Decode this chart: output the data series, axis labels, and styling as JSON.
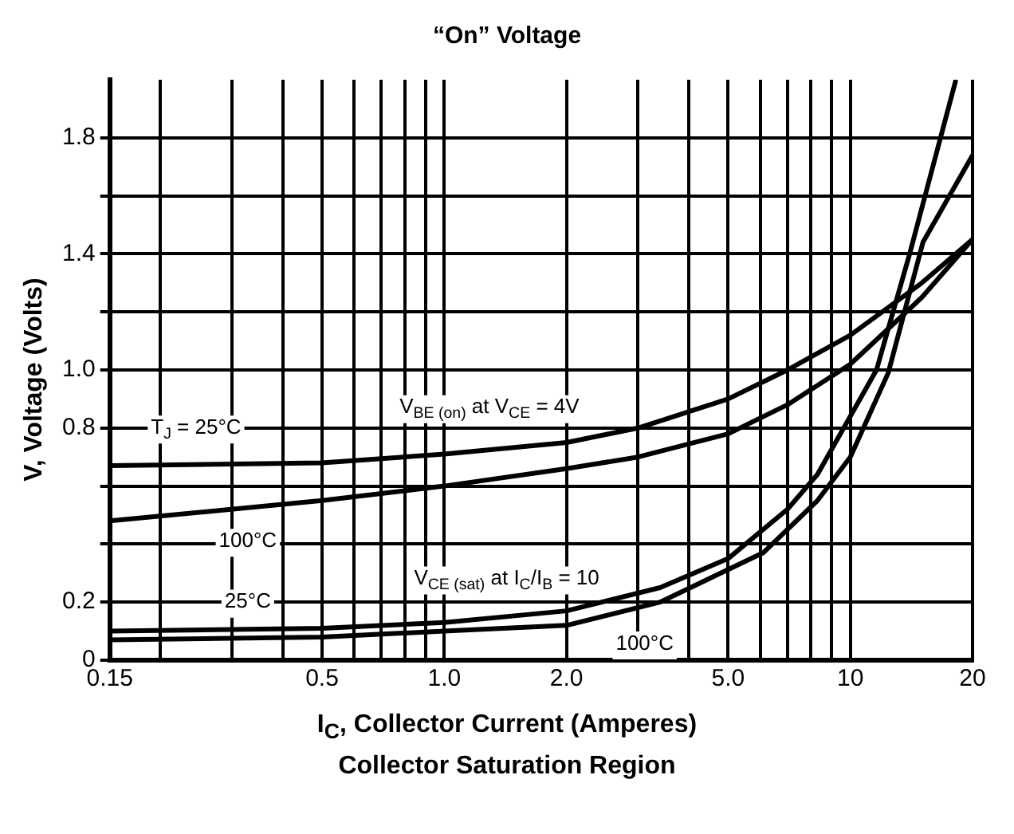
{
  "chart_data": {
    "type": "line",
    "title": "“On” Voltage",
    "xlabel": "I$_{C}$, Collector Current (Amperes)",
    "ylabel": "V, Voltage (Volts)",
    "log": "x",
    "grid": true,
    "legend": false,
    "marker": "none",
    "line_style": "solid",
    "xlim": [
      0.15,
      20
    ],
    "xticks": [
      0.15,
      {
        "value": 0.2,
        "label": null
      },
      {
        "value": 0.3,
        "label": null
      },
      {
        "value": 0.4,
        "label": null
      },
      0.5,
      {
        "value": 0.6,
        "label": null
      },
      {
        "value": 0.7,
        "label": null
      },
      {
        "value": 0.8,
        "label": null
      },
      {
        "value": 0.9,
        "label": null
      },
      {
        "value": 1,
        "label": "1.0"
      },
      {
        "value": 2,
        "label": "2.0"
      },
      {
        "value": 3,
        "label": null
      },
      {
        "value": 4,
        "label": null
      },
      {
        "value": 5,
        "label": "5.0"
      },
      {
        "value": 6,
        "label": null
      },
      {
        "value": 7,
        "label": null
      },
      {
        "value": 8,
        "label": null
      },
      {
        "value": 9,
        "label": null
      },
      10,
      20
    ],
    "ylim": [
      0,
      2.0
    ],
    "yticks": [
      0,
      0.2,
      {
        "value": 0.4,
        "label": null
      },
      {
        "value": 0.6,
        "label": null
      },
      0.8,
      {
        "value": 1.0,
        "label": "1.0"
      },
      {
        "value": 1.2,
        "label": null
      },
      1.4,
      {
        "value": 1.6,
        "label": null
      },
      1.8
    ],
    "series": [
      {
        "color": "#000000",
        "x": [
          0.15,
          0.5,
          1,
          2,
          3,
          5,
          7,
          10,
          15,
          20
        ],
        "values": [
          0.67,
          0.68,
          0.71,
          0.75,
          0.8,
          0.9,
          1.0,
          1.12,
          1.3,
          1.45
        ]
      },
      {
        "color": "#000000",
        "x": [
          0.15,
          0.5,
          1,
          2,
          3,
          5,
          7,
          10,
          15,
          20
        ],
        "values": [
          0.48,
          0.55,
          0.6,
          0.66,
          0.7,
          0.78,
          0.88,
          1.02,
          1.25,
          1.45
        ]
      },
      {
        "color": "#000000",
        "x": [
          0.15,
          0.5,
          1,
          2,
          3.4,
          5,
          7,
          8.3,
          11.6,
          14,
          18.2
        ],
        "values": [
          0.1,
          0.11,
          0.13,
          0.17,
          0.25,
          0.35,
          0.52,
          0.64,
          1.0,
          1.4,
          2.0
        ]
      },
      {
        "color": "#000000",
        "x": [
          0.15,
          0.5,
          1,
          2,
          3.4,
          6.1,
          8.3,
          10,
          12.4,
          15.1,
          20
        ],
        "values": [
          0.07,
          0.08,
          0.1,
          0.12,
          0.2,
          0.37,
          0.55,
          0.7,
          0.99,
          1.44,
          1.74
        ]
      }
    ],
    "annotations": [
      "T$_{J}$ = 25°C",
      "V$_{BE (on)}$ at V$_{CE}$ = 4V",
      "100°C",
      "25°C",
      "V$_{CE (sat)}$ at I$_{C}$/I$_{B}$ = 10",
      "100°C",
      "Collector Saturation Region"
    ]
  }
}
